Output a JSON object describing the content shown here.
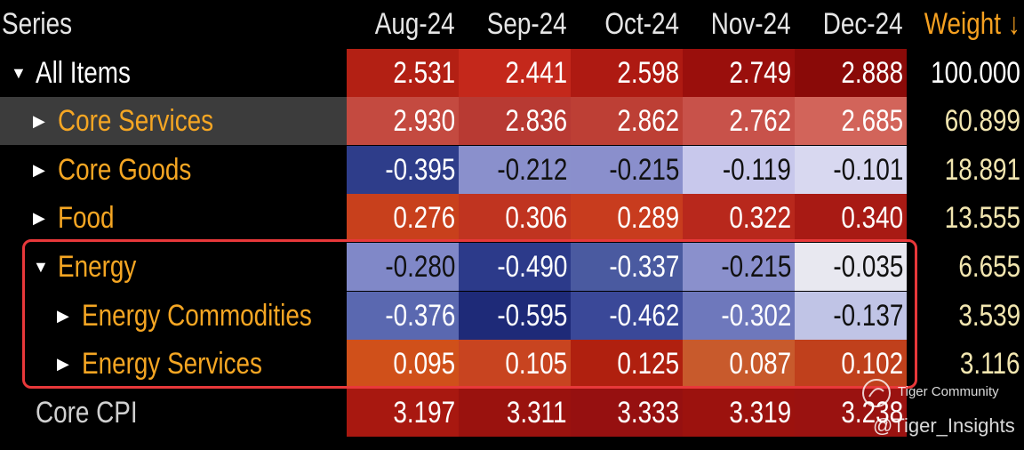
{
  "header": {
    "columns": [
      "Series",
      "Aug-24",
      "Sep-24",
      "Oct-24",
      "Nov-24",
      "Dec-24",
      "Weight ↓"
    ]
  },
  "rows": [
    {
      "label": "All Items",
      "values": [
        "2.531",
        "2.441",
        "2.598",
        "2.749",
        "2.888"
      ],
      "weight": "100.000"
    },
    {
      "label": "Core Services",
      "values": [
        "2.930",
        "2.836",
        "2.862",
        "2.762",
        "2.685"
      ],
      "weight": "60.899"
    },
    {
      "label": "Core Goods",
      "values": [
        "-0.395",
        "-0.212",
        "-0.215",
        "-0.119",
        "-0.101"
      ],
      "weight": "18.891"
    },
    {
      "label": "Food",
      "values": [
        "0.276",
        "0.306",
        "0.289",
        "0.322",
        "0.340"
      ],
      "weight": "13.555"
    },
    {
      "label": "Energy",
      "values": [
        "-0.280",
        "-0.490",
        "-0.337",
        "-0.215",
        "-0.035"
      ],
      "weight": "6.655"
    },
    {
      "label": "Energy Commodities",
      "values": [
        "-0.376",
        "-0.595",
        "-0.462",
        "-0.302",
        "-0.137"
      ],
      "weight": "3.539"
    },
    {
      "label": "Energy Services",
      "values": [
        "0.095",
        "0.105",
        "0.125",
        "0.087",
        "0.102"
      ],
      "weight": "3.116"
    },
    {
      "label": "Core CPI",
      "values": [
        "3.197",
        "3.311",
        "3.333",
        "3.319",
        "3.238"
      ],
      "weight": ""
    }
  ],
  "watermark": {
    "brand": "Tiger Community",
    "handle": "@Tiger_Insights"
  }
}
